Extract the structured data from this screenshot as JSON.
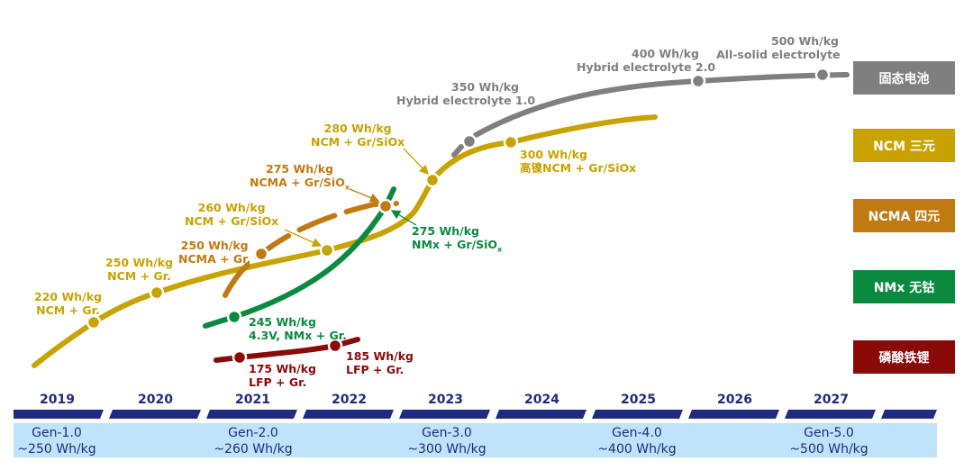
{
  "colors": {
    "ncm": "#c8a300",
    "ncma": "#c17a12",
    "nmx": "#0a8a3e",
    "lfp": "#8a0a0a",
    "solid": "#7f7f7f",
    "navy": "#1f2a80",
    "band": "#bfe3fa"
  },
  "legend": [
    {
      "label": "固态电池",
      "series": "solid"
    },
    {
      "label": "NCM 三元",
      "series": "ncm"
    },
    {
      "label": "NCMA 四元",
      "series": "ncma"
    },
    {
      "label": "NMx 无钴",
      "series": "nmx"
    },
    {
      "label": "磷酸铁锂",
      "series": "lfp"
    }
  ],
  "points": {
    "ncm": [
      {
        "value": "220 Wh/kg",
        "chem": "NCM + Gr."
      },
      {
        "value": "250 Wh/kg",
        "chem": "NCM + Gr."
      },
      {
        "value": "260 Wh/kg",
        "chem": "NCM + Gr/SiOx"
      },
      {
        "value": "280 Wh/kg",
        "chem": "NCM + Gr/SiOx"
      },
      {
        "value": "300 Wh/kg",
        "chem": "高镍NCM + Gr/SiOx"
      }
    ],
    "ncma": [
      {
        "value": "250 Wh/kg",
        "chem": "NCMA + Gr."
      },
      {
        "value": "275 Wh/kg",
        "chem": "NCMA + Gr/SiO",
        "sub": "x"
      }
    ],
    "nmx": [
      {
        "value": "245 Wh/kg",
        "chem": "4.3V, NMx + Gr."
      },
      {
        "value": "275 Wh/kg",
        "chem": "NMx + Gr/SiO",
        "sub": "x"
      }
    ],
    "lfp": [
      {
        "value": "175 Wh/kg",
        "chem": "LFP + Gr."
      },
      {
        "value": "185 Wh/kg",
        "chem": "LFP + Gr."
      }
    ],
    "solid": [
      {
        "value": "350 Wh/kg",
        "chem": "Hybrid electrolyte 1.0"
      },
      {
        "value": "400 Wh/kg",
        "chem": "Hybrid electrolyte 2.0"
      },
      {
        "value": "500 Wh/kg",
        "chem": "All-solid electrolyte"
      }
    ]
  },
  "timeline": {
    "years": [
      "2019",
      "2020",
      "2021",
      "2022",
      "2023",
      "2024",
      "2025",
      "2026",
      "2027"
    ],
    "generations": [
      {
        "name": "Gen-1.0",
        "target": "~250 Wh/kg"
      },
      {
        "name": "Gen-2.0",
        "target": "~260 Wh/kg"
      },
      {
        "name": "Gen-3.0",
        "target": "~300 Wh/kg"
      },
      {
        "name": "Gen-4.0",
        "target": "~400 Wh/kg"
      },
      {
        "name": "Gen-5.0",
        "target": "~500 Wh/kg"
      }
    ]
  }
}
